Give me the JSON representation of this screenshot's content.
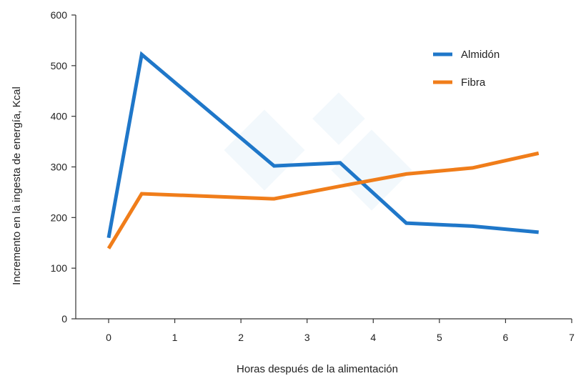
{
  "chart_data": {
    "type": "line",
    "xlabel": "Horas después de la alimentación",
    "ylabel": "Incremento en la ingesta de energía, Kcal",
    "xlim": [
      -0.5,
      7
    ],
    "ylim": [
      0,
      600
    ],
    "xticks": [
      0,
      1,
      2,
      3,
      4,
      5,
      6,
      7
    ],
    "yticks": [
      0,
      100,
      200,
      300,
      400,
      500,
      600
    ],
    "grid": false,
    "legend_position": "top-right",
    "series": [
      {
        "name": "Almidón",
        "color": "#1f77c9",
        "x": [
          0,
          0.5,
          2.5,
          3.5,
          4.5,
          5.5,
          6.5
        ],
        "y": [
          160,
          522,
          302,
          308,
          189,
          183,
          171
        ]
      },
      {
        "name": "Fibra",
        "color": "#f07d1a",
        "x": [
          0,
          0.5,
          2.5,
          3.5,
          4.5,
          5.5,
          6.5
        ],
        "y": [
          139,
          247,
          237,
          262,
          286,
          298,
          327
        ]
      }
    ]
  }
}
